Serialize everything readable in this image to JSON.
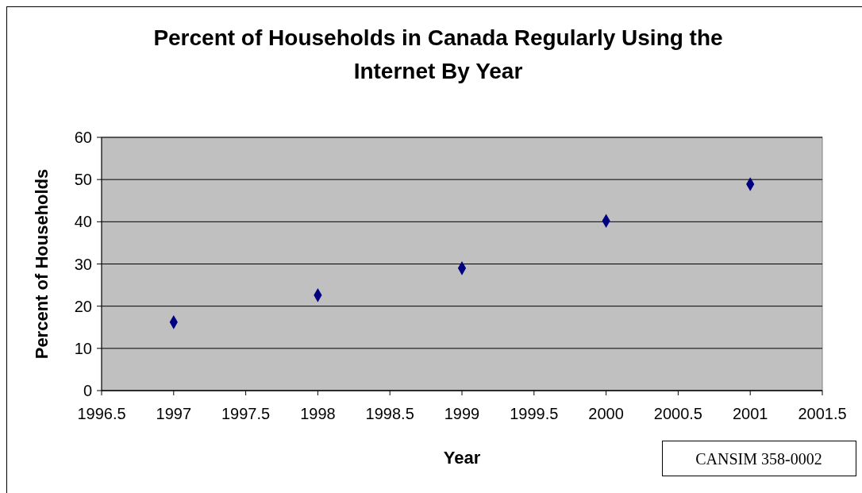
{
  "chart_data": {
    "type": "scatter",
    "title": "Percent of Households in Canada Regularly Using the Internet By Year",
    "xlabel": "Year",
    "ylabel": "Percent of Households",
    "x": [
      1997,
      1998,
      1999,
      2000,
      2001
    ],
    "series": [
      {
        "color": "#000080",
        "values": [
          16.2,
          22.6,
          29,
          40.2,
          48.9
        ]
      }
    ],
    "xlim": [
      1996.5,
      2001.5
    ],
    "xticks": [
      1996.5,
      1997,
      1997.5,
      1998,
      1998.5,
      1999,
      1999.5,
      2000,
      2000.5,
      2001,
      2001.5
    ],
    "ylim": [
      0,
      60
    ],
    "yticks": [
      0,
      10,
      20,
      30,
      40,
      50,
      60
    ],
    "grid": "y",
    "marker": "diamond",
    "annotations": [
      "CANSIM 358-0002"
    ]
  }
}
